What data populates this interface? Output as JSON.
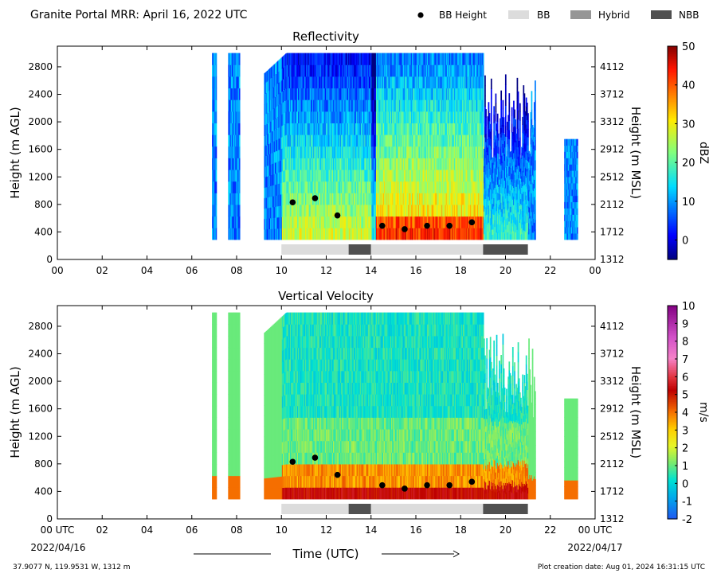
{
  "header": {
    "title": "Granite Portal MRR:  April 16, 2022 UTC",
    "legend": [
      {
        "label": "BB Height",
        "marker": "dot",
        "color": "#000000"
      },
      {
        "label": "BB",
        "marker": "rect",
        "color": "#dcdcdc"
      },
      {
        "label": "Hybrid",
        "marker": "rect",
        "color": "#969696"
      },
      {
        "label": "NBB",
        "marker": "rect",
        "color": "#505050"
      }
    ]
  },
  "footer": {
    "location": "37.9077 N, 119.9531 W, 1312 m",
    "creation": "Plot creation date: Aug 01, 2024 16:31:15 UTC",
    "xlabel": "Time (UTC)",
    "date_left": "2022/04/16",
    "date_right": "2022/04/17"
  },
  "chart_data": [
    {
      "type": "heatmap",
      "title": "Reflectivity",
      "ylabel": "Height (m AGL)",
      "ylabel_right": "Height (m MSL)",
      "xlim": [
        0,
        24
      ],
      "ylim": [
        0,
        3100
      ],
      "x_ticks": [
        "00",
        "02",
        "04",
        "06",
        "08",
        "10",
        "12",
        "14",
        "16",
        "18",
        "20",
        "22",
        "00"
      ],
      "y_ticks": [
        0,
        400,
        800,
        1200,
        1600,
        2000,
        2400,
        2800
      ],
      "y_ticks_right": [
        1312,
        1712,
        2112,
        2512,
        2912,
        3312,
        3712,
        4112
      ],
      "colorbar": {
        "label": "dBZ",
        "min": -5,
        "max": 50,
        "ticks": [
          0,
          10,
          20,
          30,
          40,
          50
        ]
      },
      "bright_band_height": {
        "x": [
          10.5,
          11.5,
          12.5,
          14.5,
          15.5,
          16.5,
          17.5,
          18.5
        ],
        "y": [
          830,
          890,
          640,
          490,
          440,
          490,
          490,
          540
        ]
      },
      "bb_type": [
        {
          "type": "BB",
          "start": 10,
          "end": 13
        },
        {
          "type": "NBB",
          "start": 13,
          "end": 14
        },
        {
          "type": "BB",
          "start": 14,
          "end": 19
        },
        {
          "type": "NBB",
          "start": 19,
          "end": 21
        }
      ]
    },
    {
      "type": "heatmap",
      "title": "Vertical Velocity",
      "ylabel": "Height (m AGL)",
      "ylabel_right": "Height (m MSL)",
      "xlim": [
        0,
        24
      ],
      "ylim": [
        0,
        3100
      ],
      "x_ticks": [
        "00 UTC",
        "02",
        "04",
        "06",
        "08",
        "10",
        "12",
        "14",
        "16",
        "18",
        "20",
        "22",
        "00 UTC"
      ],
      "y_ticks": [
        0,
        400,
        800,
        1200,
        1600,
        2000,
        2400,
        2800
      ],
      "y_ticks_right": [
        1312,
        1712,
        2112,
        2512,
        2912,
        3312,
        3712,
        4112
      ],
      "colorbar": {
        "label": "m/s",
        "min": -2,
        "max": 10,
        "ticks": [
          -2,
          -1,
          0,
          1,
          2,
          3,
          4,
          5,
          6,
          7,
          8,
          9,
          10
        ]
      },
      "bright_band_height": {
        "x": [
          10.5,
          11.5,
          12.5,
          14.5,
          15.5,
          16.5,
          17.5,
          18.5
        ],
        "y": [
          830,
          890,
          640,
          490,
          440,
          490,
          490,
          540
        ]
      },
      "bb_type": [
        {
          "type": "BB",
          "start": 10,
          "end": 13
        },
        {
          "type": "NBB",
          "start": 13,
          "end": 14
        },
        {
          "type": "BB",
          "start": 14,
          "end": 19
        },
        {
          "type": "NBB",
          "start": 19,
          "end": 21
        }
      ]
    }
  ]
}
